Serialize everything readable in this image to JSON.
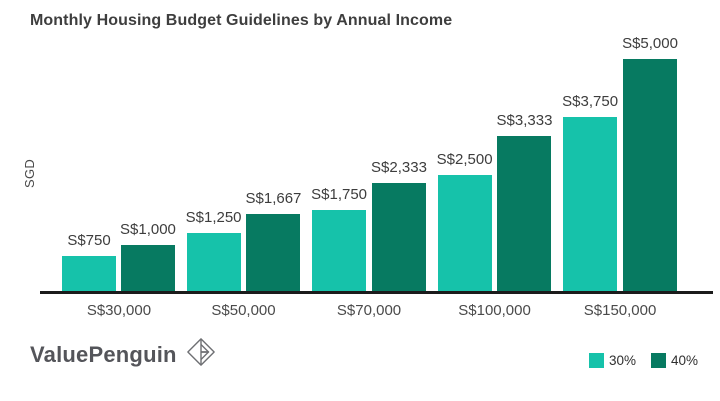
{
  "title": "Monthly Housing Budget Guidelines by Annual Income",
  "y_axis_label": "SGD",
  "brand": {
    "name": "ValuePenguin",
    "logo_icon": "origami-diamond-icon"
  },
  "colors": {
    "series_30": "#16C2AA",
    "series_40": "#077A61",
    "title_text": "#3E3E3E",
    "axis_text": "#4A4A4A",
    "baseline": "#1B1B1B",
    "logo_text": "#54555A"
  },
  "legend": {
    "position": "bottom-right",
    "items": [
      {
        "label": "30%",
        "color": "#16C2AA"
      },
      {
        "label": "40%",
        "color": "#077A61"
      }
    ]
  },
  "chart_data": {
    "type": "bar",
    "title": "Monthly Housing Budget Guidelines by Annual Income",
    "xlabel": "",
    "ylabel": "SGD",
    "ylim": [
      0,
      5000
    ],
    "grid": false,
    "legend_position": "bottom-right",
    "categories": [
      "S$30,000",
      "S$50,000",
      "S$70,000",
      "S$100,000",
      "S$150,000"
    ],
    "series": [
      {
        "name": "30%",
        "color": "#16C2AA",
        "values": [
          750,
          1250,
          1750,
          2500,
          3750
        ],
        "labels": [
          "S$750",
          "S$1,250",
          "S$1,750",
          "S$2,500",
          "S$3,750"
        ]
      },
      {
        "name": "40%",
        "color": "#077A61",
        "values": [
          1000,
          1667,
          2333,
          3333,
          5000
        ],
        "labels": [
          "S$1,000",
          "S$1,667",
          "S$2,333",
          "S$3,333",
          "S$5,000"
        ]
      }
    ]
  }
}
